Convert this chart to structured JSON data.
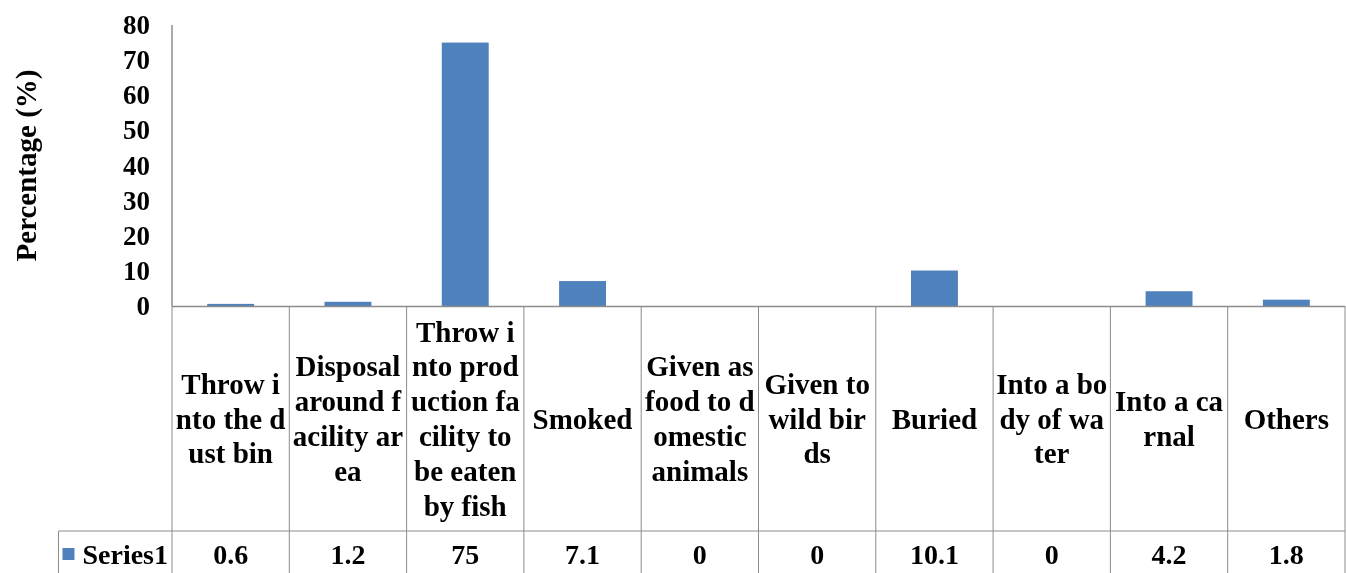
{
  "chart_data": {
    "type": "bar",
    "ylabel": "Percentage (%)",
    "categories": [
      "Throw into the dust bin",
      "Disposal around facility area",
      "Throw into production facility to be eaten by fish",
      "Smoked",
      "Given as food to domestic animals",
      "Given to wild birds",
      "Buried",
      "Into a body of water",
      "Into a carnal",
      "Others"
    ],
    "series": [
      {
        "name": "Series1",
        "color": "#4f81bd",
        "values": [
          0.6,
          1.2,
          75,
          7.1,
          0,
          0,
          10.1,
          0,
          4.2,
          1.8
        ]
      }
    ],
    "ylim": [
      0,
      80
    ],
    "yticks": [
      0,
      10,
      20,
      30,
      40,
      50,
      60,
      70,
      80
    ],
    "data_labels": true,
    "legend": "bottom left"
  }
}
